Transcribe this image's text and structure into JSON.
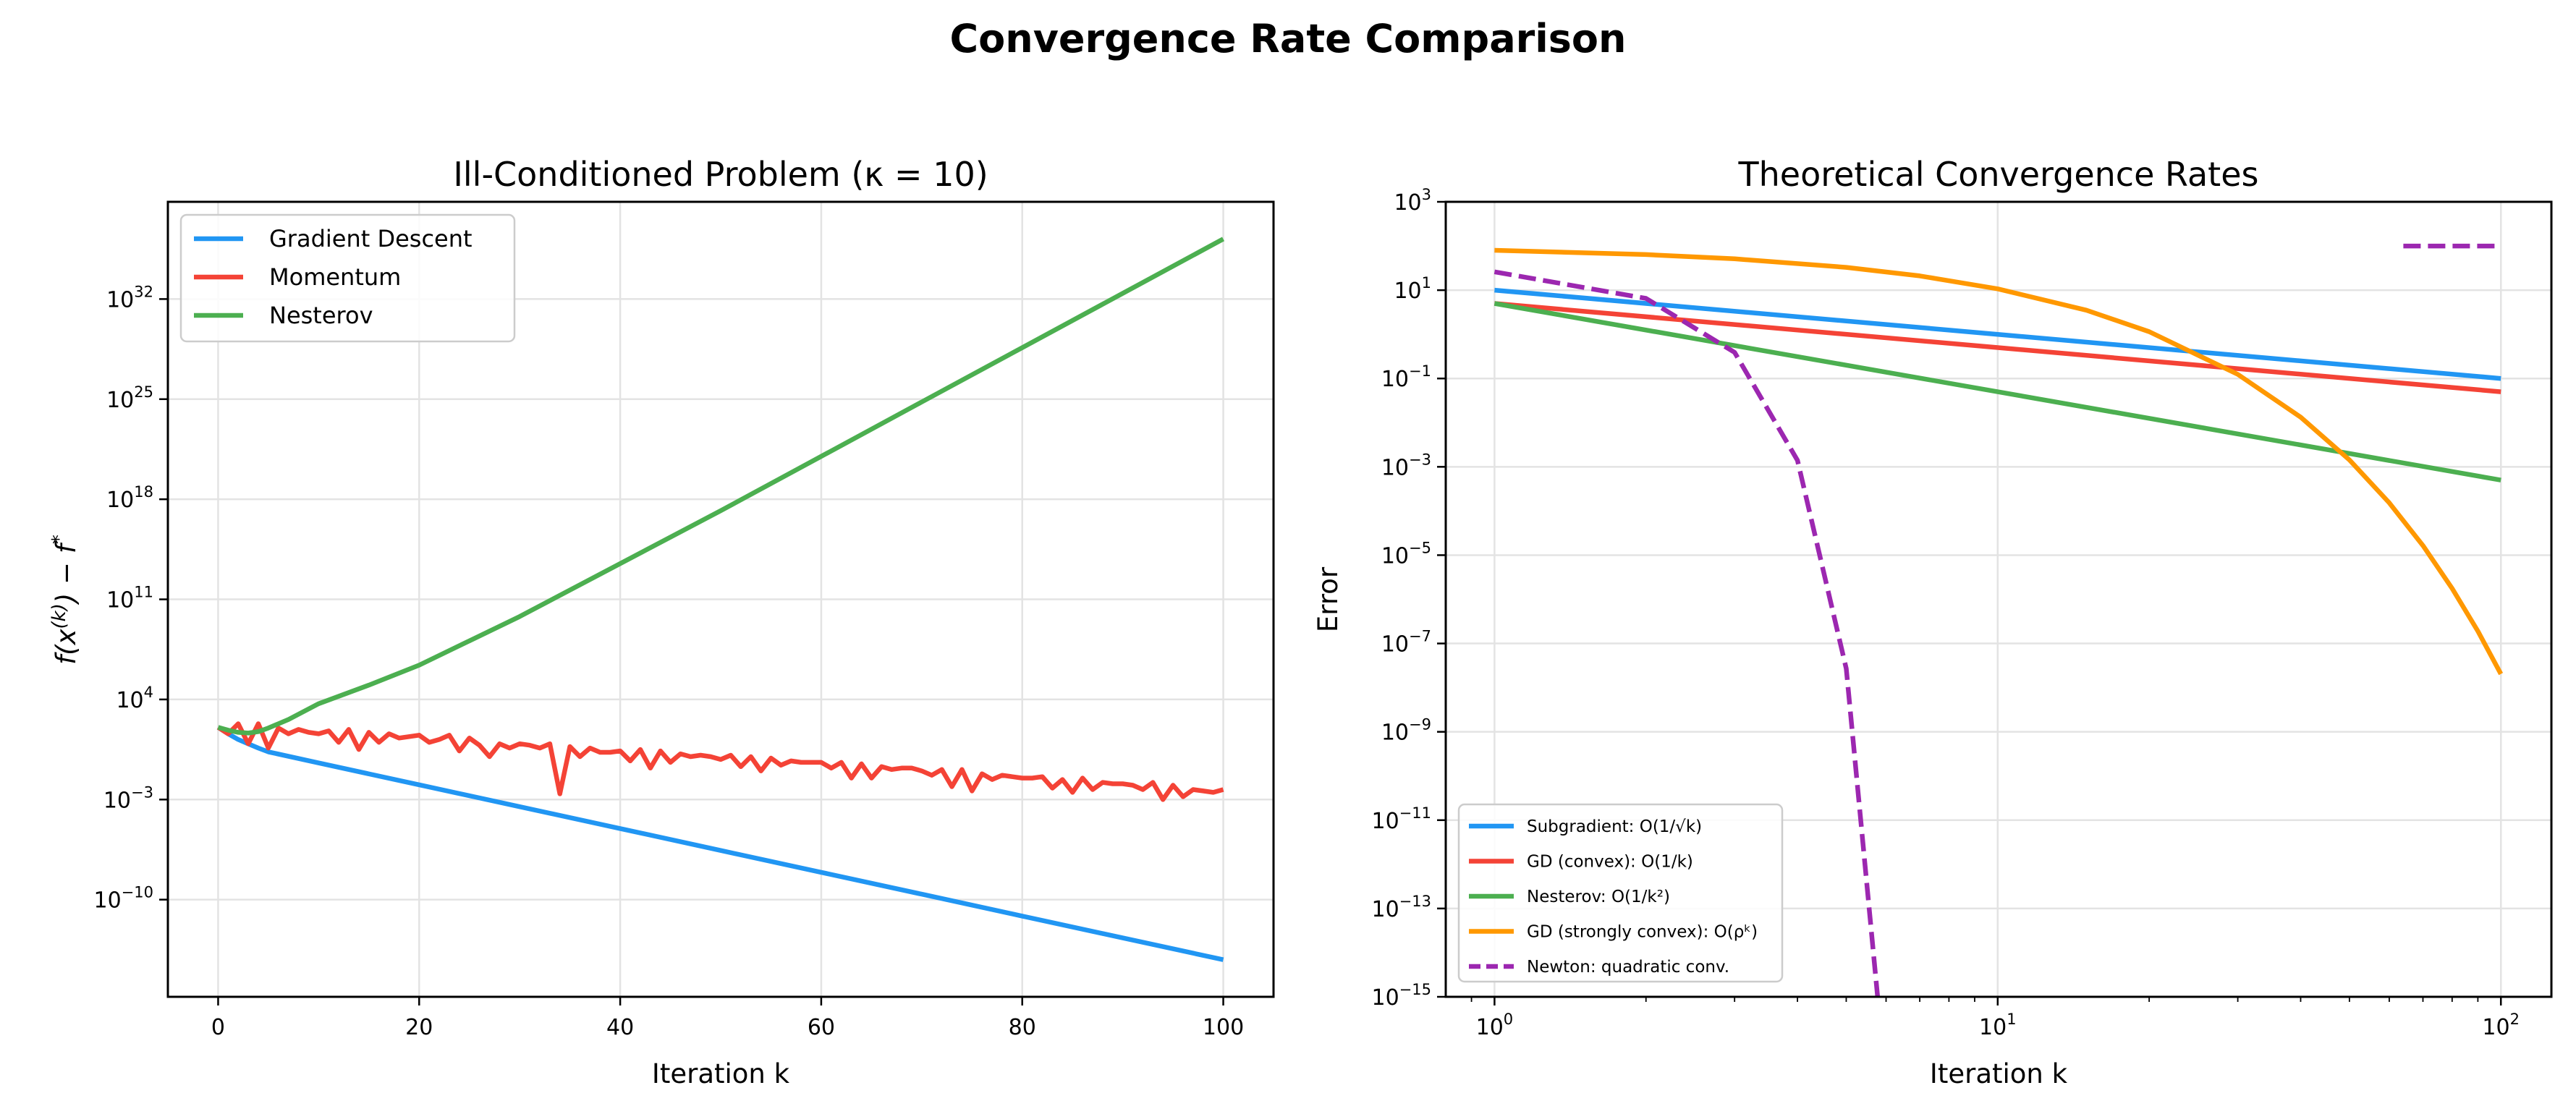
{
  "title": "Convergence Rate Comparison",
  "chart_data": [
    {
      "type": "line",
      "title": "Ill-Conditioned Problem (κ = 10)",
      "xlabel": "Iteration k",
      "ylabel": {
        "f": "f(x",
        "sup": "(k)",
        "rest": ") − f",
        "star": "*"
      },
      "xscale": "linear",
      "yscale": "log",
      "xlim": [
        -5,
        105
      ],
      "ylim": [
        1.6e-17,
        6.3e+38
      ],
      "grid": true,
      "legend": "top-left",
      "x_ticks": [
        {
          "label": "0",
          "value": 0
        },
        {
          "label": "20",
          "value": 20
        },
        {
          "label": "40",
          "value": 40
        },
        {
          "label": "60",
          "value": 60
        },
        {
          "label": "80",
          "value": 80
        },
        {
          "label": "100",
          "value": 100
        }
      ],
      "y_ticks": [
        {
          "base": "10",
          "exp": "32",
          "value": 1e+32
        },
        {
          "base": "10",
          "exp": "25",
          "value": 1e+25
        },
        {
          "base": "10",
          "exp": "18",
          "value": 1e+18
        },
        {
          "base": "10",
          "exp": "11",
          "value": 100000000000.0
        },
        {
          "base": "10",
          "exp": "4",
          "value": 10000.0
        },
        {
          "base": "10",
          "exp": "−3",
          "value": 0.001
        },
        {
          "base": "10",
          "exp": "−10",
          "value": 1e-10
        }
      ],
      "series": [
        {
          "name": "Gradient Descent",
          "color": "#2196F3",
          "style": "solid",
          "x": [
            0,
            1,
            2,
            3,
            4,
            5,
            10,
            20,
            30,
            40,
            50,
            60,
            70,
            80,
            90,
            100
          ],
          "y": [
            112.0,
            39.8,
            15.8,
            7.94,
            3.98,
            2.14,
            0.363,
            0.0107,
            0.000316,
            9.33e-06,
            2.75e-07,
            8.13e-09,
            2.4e-10,
            7.08e-12,
            2.09e-13,
            6.31e-15
          ]
        },
        {
          "name": "Momentum",
          "color": "#F44336",
          "style": "solid",
          "x": [
            0,
            1,
            2,
            3,
            4,
            5,
            6,
            7,
            8,
            9,
            10,
            11,
            12,
            13,
            14,
            15,
            16,
            17,
            18,
            19,
            20,
            21,
            22,
            23,
            24,
            25,
            26,
            27,
            28,
            29,
            30,
            31,
            32,
            33,
            34,
            35,
            36,
            37,
            38,
            39,
            40,
            41,
            42,
            43,
            44,
            45,
            46,
            47,
            48,
            49,
            50,
            51,
            52,
            53,
            54,
            55,
            56,
            57,
            58,
            59,
            60,
            61,
            62,
            63,
            64,
            65,
            66,
            67,
            68,
            69,
            70,
            71,
            72,
            73,
            74,
            75,
            76,
            77,
            78,
            79,
            80,
            81,
            82,
            83,
            84,
            85,
            86,
            87,
            88,
            89,
            90,
            91,
            92,
            93,
            94,
            95,
            96,
            97,
            98,
            99,
            100
          ],
          "y": [
            112.0,
            39.8,
            200.0,
            7.94,
            200.0,
            3.98,
            100.0,
            39.8,
            79.4,
            50.1,
            39.8,
            63.1,
            10.0,
            79.4,
            3.16,
            50.1,
            10.0,
            39.8,
            20.0,
            25.1,
            31.6,
            10.0,
            15.8,
            31.6,
            2.51,
            20.0,
            6.31,
            1,
            7.94,
            3.98,
            7.94,
            6.31,
            3.98,
            7.94,
            0.00251,
            5.01,
            1,
            3.98,
            2.0,
            2.0,
            2.51,
            0.501,
            3.16,
            0.158,
            2.51,
            0.398,
            1.58,
            1,
            1.26,
            1,
            0.631,
            1.26,
            0.2,
            1,
            0.1,
            0.794,
            0.251,
            0.501,
            0.398,
            0.398,
            0.398,
            0.158,
            0.398,
            0.0316,
            0.316,
            0.0316,
            0.2,
            0.126,
            0.158,
            0.158,
            0.1,
            0.0501,
            0.126,
            0.00794,
            0.126,
            0.00398,
            0.0631,
            0.0251,
            0.0501,
            0.0398,
            0.0316,
            0.0316,
            0.0398,
            0.00631,
            0.0251,
            0.00316,
            0.0316,
            0.00501,
            0.0158,
            0.0126,
            0.0126,
            0.01,
            0.00501,
            0.0158,
            0.001,
            0.01,
            0.00158,
            0.00501,
            0.00398,
            0.00316,
            0.00501
          ]
        },
        {
          "name": "Nesterov",
          "color": "#4CAF50",
          "style": "solid",
          "x": [
            0,
            1,
            2,
            3,
            4,
            5,
            7,
            10,
            15,
            20,
            25,
            30,
            40,
            50,
            60,
            70,
            80,
            90,
            100
          ],
          "y": [
            112.0,
            70.8,
            50.1,
            44.7,
            56.2,
            100.0,
            398.0,
            5010.0,
            100000.0,
            2510000.0,
            126000000.0,
            6310000000.0,
            31600000000000.0,
            1.58e+17,
            1e+21,
            6.31e+24,
            3.98e+28,
            2.51e+32,
            1.58e+36
          ]
        }
      ]
    },
    {
      "type": "line",
      "title": "Theoretical Convergence Rates",
      "xlabel": "Iteration k",
      "ylabel": "Error",
      "xscale": "log",
      "yscale": "log",
      "xlim": [
        0.8,
        126
      ],
      "ylim": [
        1e-15,
        1000.0
      ],
      "grid": true,
      "legend": "bottom-left",
      "x_ticks": [
        {
          "base": "10",
          "exp": "0",
          "value": 1
        },
        {
          "base": "10",
          "exp": "1",
          "value": 10
        },
        {
          "base": "10",
          "exp": "2",
          "value": 100
        }
      ],
      "y_ticks": [
        {
          "base": "10",
          "exp": "3",
          "value": 1000.0
        },
        {
          "base": "10",
          "exp": "1",
          "value": 10.0
        },
        {
          "base": "10",
          "exp": "−1",
          "value": 0.1
        },
        {
          "base": "10",
          "exp": "−3",
          "value": 0.001
        },
        {
          "base": "10",
          "exp": "−5",
          "value": 1e-05
        },
        {
          "base": "10",
          "exp": "−7",
          "value": 1e-07
        },
        {
          "base": "10",
          "exp": "−9",
          "value": 1e-09
        },
        {
          "base": "10",
          "exp": "−11",
          "value": 1e-11
        },
        {
          "base": "10",
          "exp": "−13",
          "value": 1e-13
        },
        {
          "base": "10",
          "exp": "−15",
          "value": 1e-15
        }
      ],
      "series": [
        {
          "name": "Subgradient: O(1/√k)",
          "color": "#2196F3",
          "style": "solid",
          "x": [
            1,
            10,
            100
          ],
          "y": [
            10,
            1,
            0.1
          ]
        },
        {
          "name": "GD (convex): O(1/k)",
          "color": "#F44336",
          "style": "solid",
          "x": [
            1,
            10,
            100
          ],
          "y": [
            5,
            0.5,
            0.05
          ]
        },
        {
          "name": "Nesterov: O(1/k²)",
          "color": "#4CAF50",
          "style": "solid",
          "x": [
            1,
            10,
            100
          ],
          "y": [
            5,
            0.05,
            0.0005
          ]
        },
        {
          "name": "GD (strongly convex): O(ρᵏ)",
          "color": "#FF9800",
          "style": "solid",
          "x": [
            1,
            2,
            3,
            5,
            7,
            10,
            15,
            20,
            30,
            40,
            50,
            60,
            70,
            80,
            90,
            100
          ],
          "y": [
            80,
            64,
            51.2,
            32.8,
            21.0,
            10.7,
            3.52,
            1.15,
            0.124,
            0.0133,
            0.00143,
            0.000153,
            1.65e-05,
            1.77e-06,
            1.9e-07,
            2.04e-08
          ]
        },
        {
          "name": "Newton: quadratic conv.",
          "color": "#9C27B0",
          "style": "dashed",
          "x": [
            1,
            2,
            3,
            4,
            5,
            6,
            null,
            64,
            100
          ],
          "y": [
            26,
            6.5,
            0.39,
            0.0014,
            2.7e-08,
            1e-17,
            null,
            100,
            100
          ]
        }
      ]
    }
  ]
}
